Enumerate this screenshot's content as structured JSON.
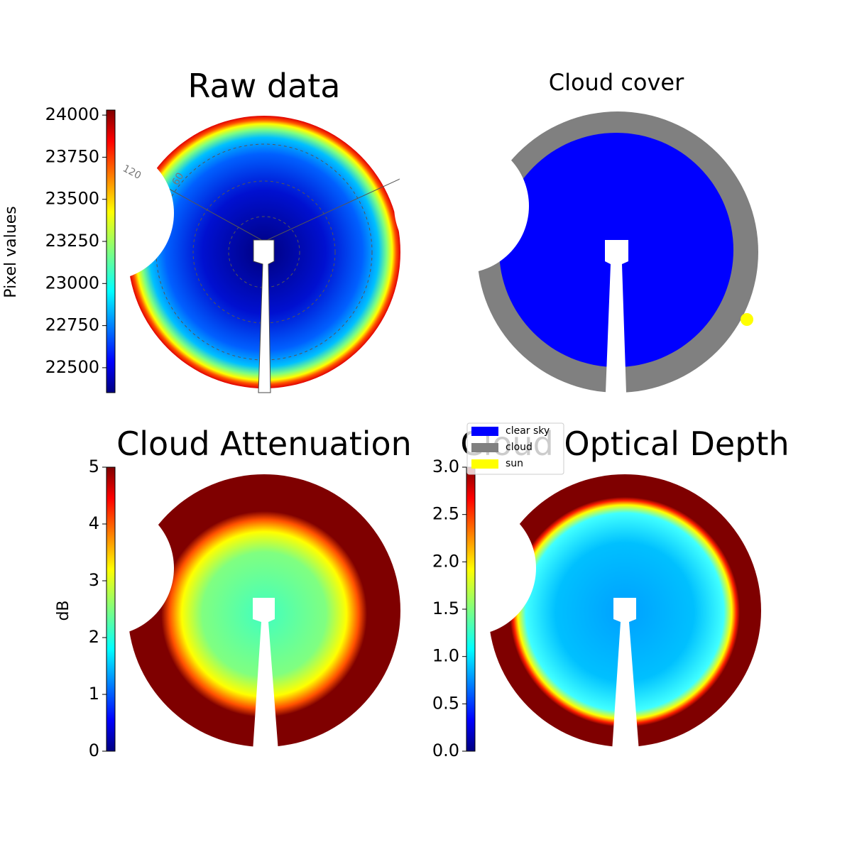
{
  "chart_data": [
    {
      "type": "image",
      "title": "Raw data",
      "colorbar_label": "Pixel values",
      "colormap": "jet",
      "clim": [
        22352,
        24030
      ],
      "cticks": [
        22500,
        22750,
        23000,
        23250,
        23500,
        23750,
        24000
      ],
      "annotations": [
        "120",
        "60"
      ]
    },
    {
      "type": "categorical-image",
      "title": "Cloud cover",
      "legend": {
        "labels": [
          "clear sky",
          "cloud",
          "sun"
        ],
        "colors": [
          "#0000ff",
          "#808080",
          "#ffff00"
        ]
      }
    },
    {
      "type": "image",
      "title": "Cloud Attenuation",
      "colorbar_label": "dB",
      "colormap": "jet",
      "clim": [
        0,
        5
      ],
      "cticks": [
        0,
        1,
        2,
        3,
        4,
        5
      ]
    },
    {
      "type": "image",
      "title": "Cloud Optical Depth",
      "colormap": "jet",
      "clim": [
        0,
        3
      ],
      "cticks": [
        {
          "value": 0,
          "label": "0.0"
        },
        0.5,
        {
          "value": 1,
          "label": "1.0"
        },
        1.5,
        {
          "value": 2,
          "label": "2.0"
        },
        2.5,
        {
          "value": 3,
          "label": "3.0"
        }
      ]
    }
  ]
}
